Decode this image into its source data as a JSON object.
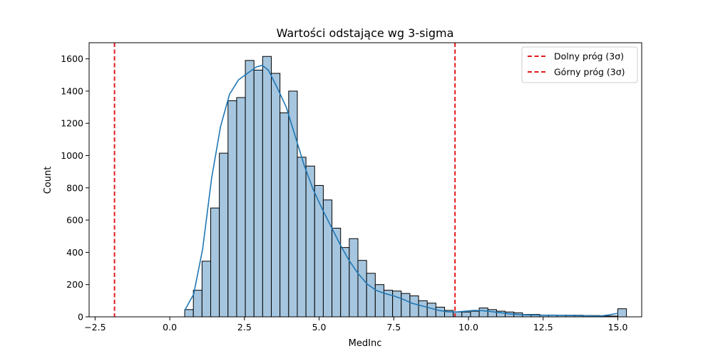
{
  "chart_data": {
    "type": "histogram",
    "title": "Wartości odstające wg 3-sigma",
    "xlabel": "MedInc",
    "ylabel": "Count",
    "xlim": [
      -2.7,
      15.8
    ],
    "ylim": [
      0,
      1700
    ],
    "xticks": [
      -2.5,
      0.0,
      2.5,
      5.0,
      7.5,
      10.0,
      12.5,
      15.0
    ],
    "xtick_labels": [
      "−2.5",
      "0.0",
      "2.5",
      "5.0",
      "7.5",
      "10.0",
      "12.5",
      "15.0"
    ],
    "yticks": [
      0,
      200,
      400,
      600,
      800,
      1000,
      1200,
      1400,
      1600
    ],
    "ytick_labels": [
      "0",
      "200",
      "400",
      "600",
      "800",
      "1000",
      "1200",
      "1400",
      "1600"
    ],
    "grid": false,
    "bins": {
      "start": 0.4999,
      "width": 0.29,
      "counts": [
        45,
        165,
        345,
        675,
        1015,
        1340,
        1360,
        1590,
        1530,
        1615,
        1510,
        1265,
        1400,
        990,
        935,
        815,
        725,
        550,
        430,
        485,
        350,
        270,
        200,
        165,
        160,
        145,
        130,
        100,
        85,
        60,
        40,
        30,
        30,
        35,
        55,
        45,
        35,
        30,
        25,
        15,
        15,
        10,
        10,
        10,
        10,
        10,
        8,
        8,
        5,
        5,
        50
      ]
    },
    "kde": {
      "x": [
        0.5,
        0.8,
        1.1,
        1.4,
        1.7,
        2.0,
        2.3,
        2.6,
        2.9,
        3.1,
        3.3,
        3.6,
        3.9,
        4.2,
        4.5,
        4.8,
        5.1,
        5.4,
        5.7,
        6.0,
        6.3,
        6.6,
        6.9,
        7.2,
        7.5,
        7.8,
        8.1,
        8.4,
        8.7,
        9.0,
        9.3,
        9.6,
        9.9,
        10.2,
        10.5,
        10.8,
        11.1,
        11.4,
        11.7,
        12.0,
        12.3,
        12.6,
        12.9,
        13.2,
        13.5,
        13.8,
        14.1,
        14.4,
        14.7,
        15.0
      ],
      "y": [
        40,
        140,
        420,
        860,
        1180,
        1380,
        1470,
        1510,
        1550,
        1560,
        1530,
        1420,
        1300,
        1120,
        940,
        790,
        670,
        560,
        450,
        350,
        270,
        205,
        165,
        145,
        130,
        110,
        85,
        70,
        55,
        40,
        32,
        30,
        35,
        40,
        38,
        32,
        25,
        18,
        14,
        12,
        11,
        10,
        10,
        9,
        8,
        7,
        6,
        5,
        12,
        22
      ]
    },
    "hlines": [
      {
        "name": "Dolny próg (3σ)",
        "x": -1.85,
        "color": "#e31a1c",
        "style": "dashed"
      },
      {
        "name": "Górny próg (3σ)",
        "x": 9.55,
        "color": "#e31a1c",
        "style": "dashed"
      }
    ],
    "legend_placement": "top-right",
    "colors": {
      "bar_fill": "#a6c6df",
      "bar_edge": "#000000",
      "kde": "#1f77b4",
      "threshold": "#e31a1c"
    }
  }
}
